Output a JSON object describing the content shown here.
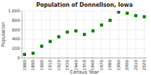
{
  "chart_data": {
    "type": "scatter",
    "title": "Population of Donnellson, Iowa",
    "xlabel": "Census Year",
    "ylabel": "Population",
    "x": [
      1880,
      1890,
      1900,
      1910,
      1920,
      1930,
      1940,
      1950,
      1960,
      1970,
      1980,
      1990,
      2000,
      2010,
      2020
    ],
    "values": [
      75,
      100,
      250,
      350,
      450,
      550,
      575,
      500,
      575,
      700,
      800,
      975,
      950,
      900,
      875
    ],
    "color": "#008000",
    "marker": "square",
    "xlim": [
      1877,
      2023
    ],
    "ylim": [
      0,
      1000
    ],
    "xticks": [
      1880,
      1890,
      1900,
      1910,
      1920,
      1930,
      1940,
      1950,
      1960,
      1970,
      1980,
      1990,
      2000,
      2010,
      2020
    ],
    "yticks": [
      0,
      200,
      400,
      600,
      800,
      {
        "value": 1000,
        "label": "1,000"
      }
    ],
    "grid": true
  }
}
